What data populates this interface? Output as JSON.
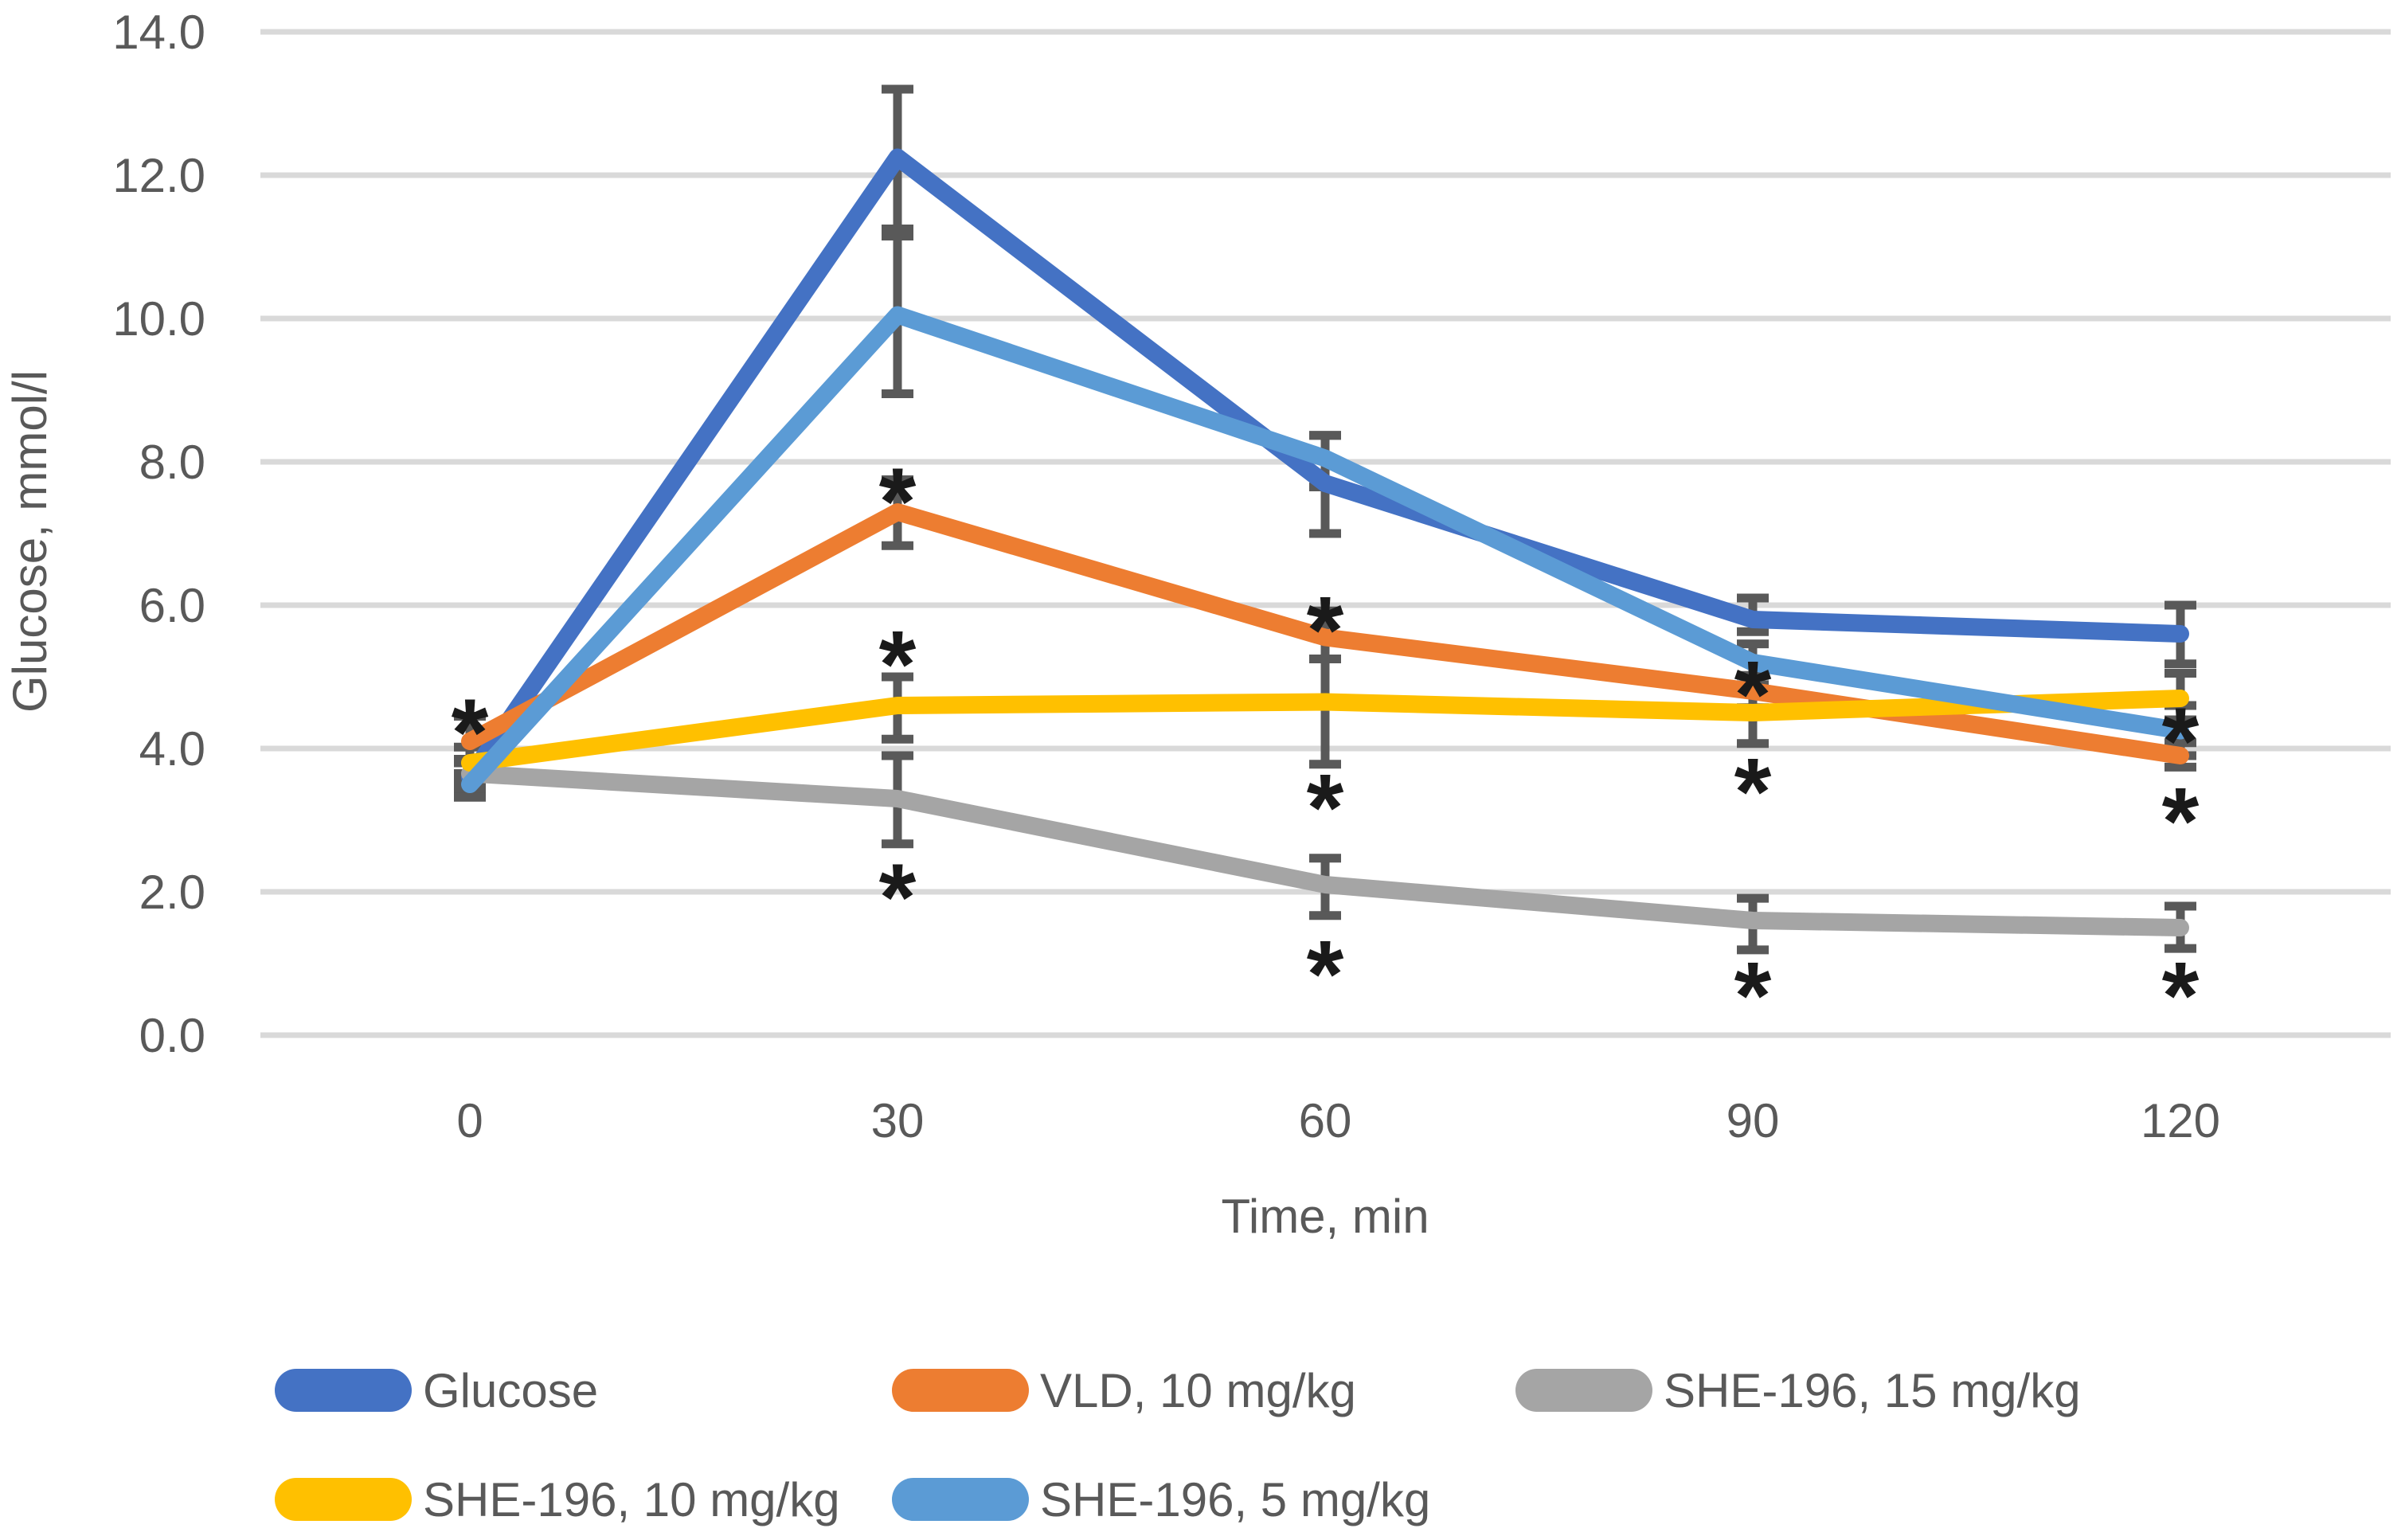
{
  "chart_data": {
    "type": "line",
    "title": "",
    "xlabel": "Time, min",
    "ylabel": "Glucose, mmol/l",
    "x": [
      0,
      30,
      60,
      90,
      120
    ],
    "xtick_labels": [
      "0",
      "30",
      "60",
      "90",
      "120"
    ],
    "ylim": [
      0,
      14
    ],
    "ytick_step": 2,
    "ytick_labels": [
      "0.0",
      "2.0",
      "4.0",
      "6.0",
      "8.0",
      "10.0",
      "12.0",
      "14.0"
    ],
    "grid": true,
    "grid_color": "#d9d9d9",
    "error_bar_color": "#595959",
    "text_color": "#595959",
    "legend_position": "bottom",
    "series": [
      {
        "name": "Glucose",
        "color": "#4472C4",
        "values": [
          3.6,
          12.25,
          7.7,
          5.8,
          5.6
        ],
        "err_up": [
          0.2,
          0.95,
          0.67,
          0.3,
          0.4
        ],
        "err_down": [
          0.2,
          1.0,
          0.7,
          0.17,
          0.42
        ]
      },
      {
        "name": "VLD, 10 mg/kg",
        "color": "#ED7D31",
        "values": [
          4.1,
          7.3,
          5.55,
          4.8,
          3.9
        ],
        "err_up": [
          0.35,
          0.45,
          0.37,
          0.22,
          0.18
        ],
        "err_down": [
          0.3,
          0.47,
          0.3,
          0.23,
          0.16
        ]
      },
      {
        "name": "SHE-196, 15 mg/kg",
        "color": "#A5A5A5",
        "values": [
          3.65,
          3.3,
          2.1,
          1.6,
          1.5
        ],
        "err_up": [
          0.2,
          0.6,
          0.37,
          0.31,
          0.3
        ],
        "err_down": [
          0.2,
          0.63,
          0.43,
          0.41,
          0.29
        ]
      },
      {
        "name": "SHE-196, 10 mg/kg",
        "color": "#FFC000",
        "values": [
          3.8,
          4.6,
          4.65,
          4.5,
          4.7
        ],
        "err_up": [
          0.22,
          0.4,
          0.6,
          0.3,
          0.35
        ],
        "err_down": [
          0.25,
          0.47,
          0.87,
          0.43,
          0.3
        ]
      },
      {
        "name": "SHE-196, 5 mg/kg",
        "color": "#5B9BD5",
        "values": [
          3.5,
          10.05,
          8.05,
          5.2,
          4.25
        ],
        "err_up": [
          0.15,
          1.1,
          0.32,
          0.26,
          0.35
        ],
        "err_down": [
          0.18,
          1.1,
          0.4,
          0.31,
          0.35
        ]
      }
    ],
    "annotations": [
      {
        "x": 0,
        "y": 4.5,
        "text": "*"
      },
      {
        "x": 30,
        "y": 7.72,
        "text": "*"
      },
      {
        "x": 30,
        "y": 5.45,
        "text": "*"
      },
      {
        "x": 30,
        "y": 2.2,
        "text": "*"
      },
      {
        "x": 60,
        "y": 5.93,
        "text": "*"
      },
      {
        "x": 60,
        "y": 3.45,
        "text": "*"
      },
      {
        "x": 60,
        "y": 1.13,
        "text": "*"
      },
      {
        "x": 90,
        "y": 5.03,
        "text": "*"
      },
      {
        "x": 90,
        "y": 3.67,
        "text": "*"
      },
      {
        "x": 90,
        "y": 0.83,
        "text": "*"
      },
      {
        "x": 120,
        "y": 4.38,
        "text": "*"
      },
      {
        "x": 120,
        "y": 3.26,
        "text": "*"
      },
      {
        "x": 120,
        "y": 0.83,
        "text": "*"
      }
    ]
  }
}
